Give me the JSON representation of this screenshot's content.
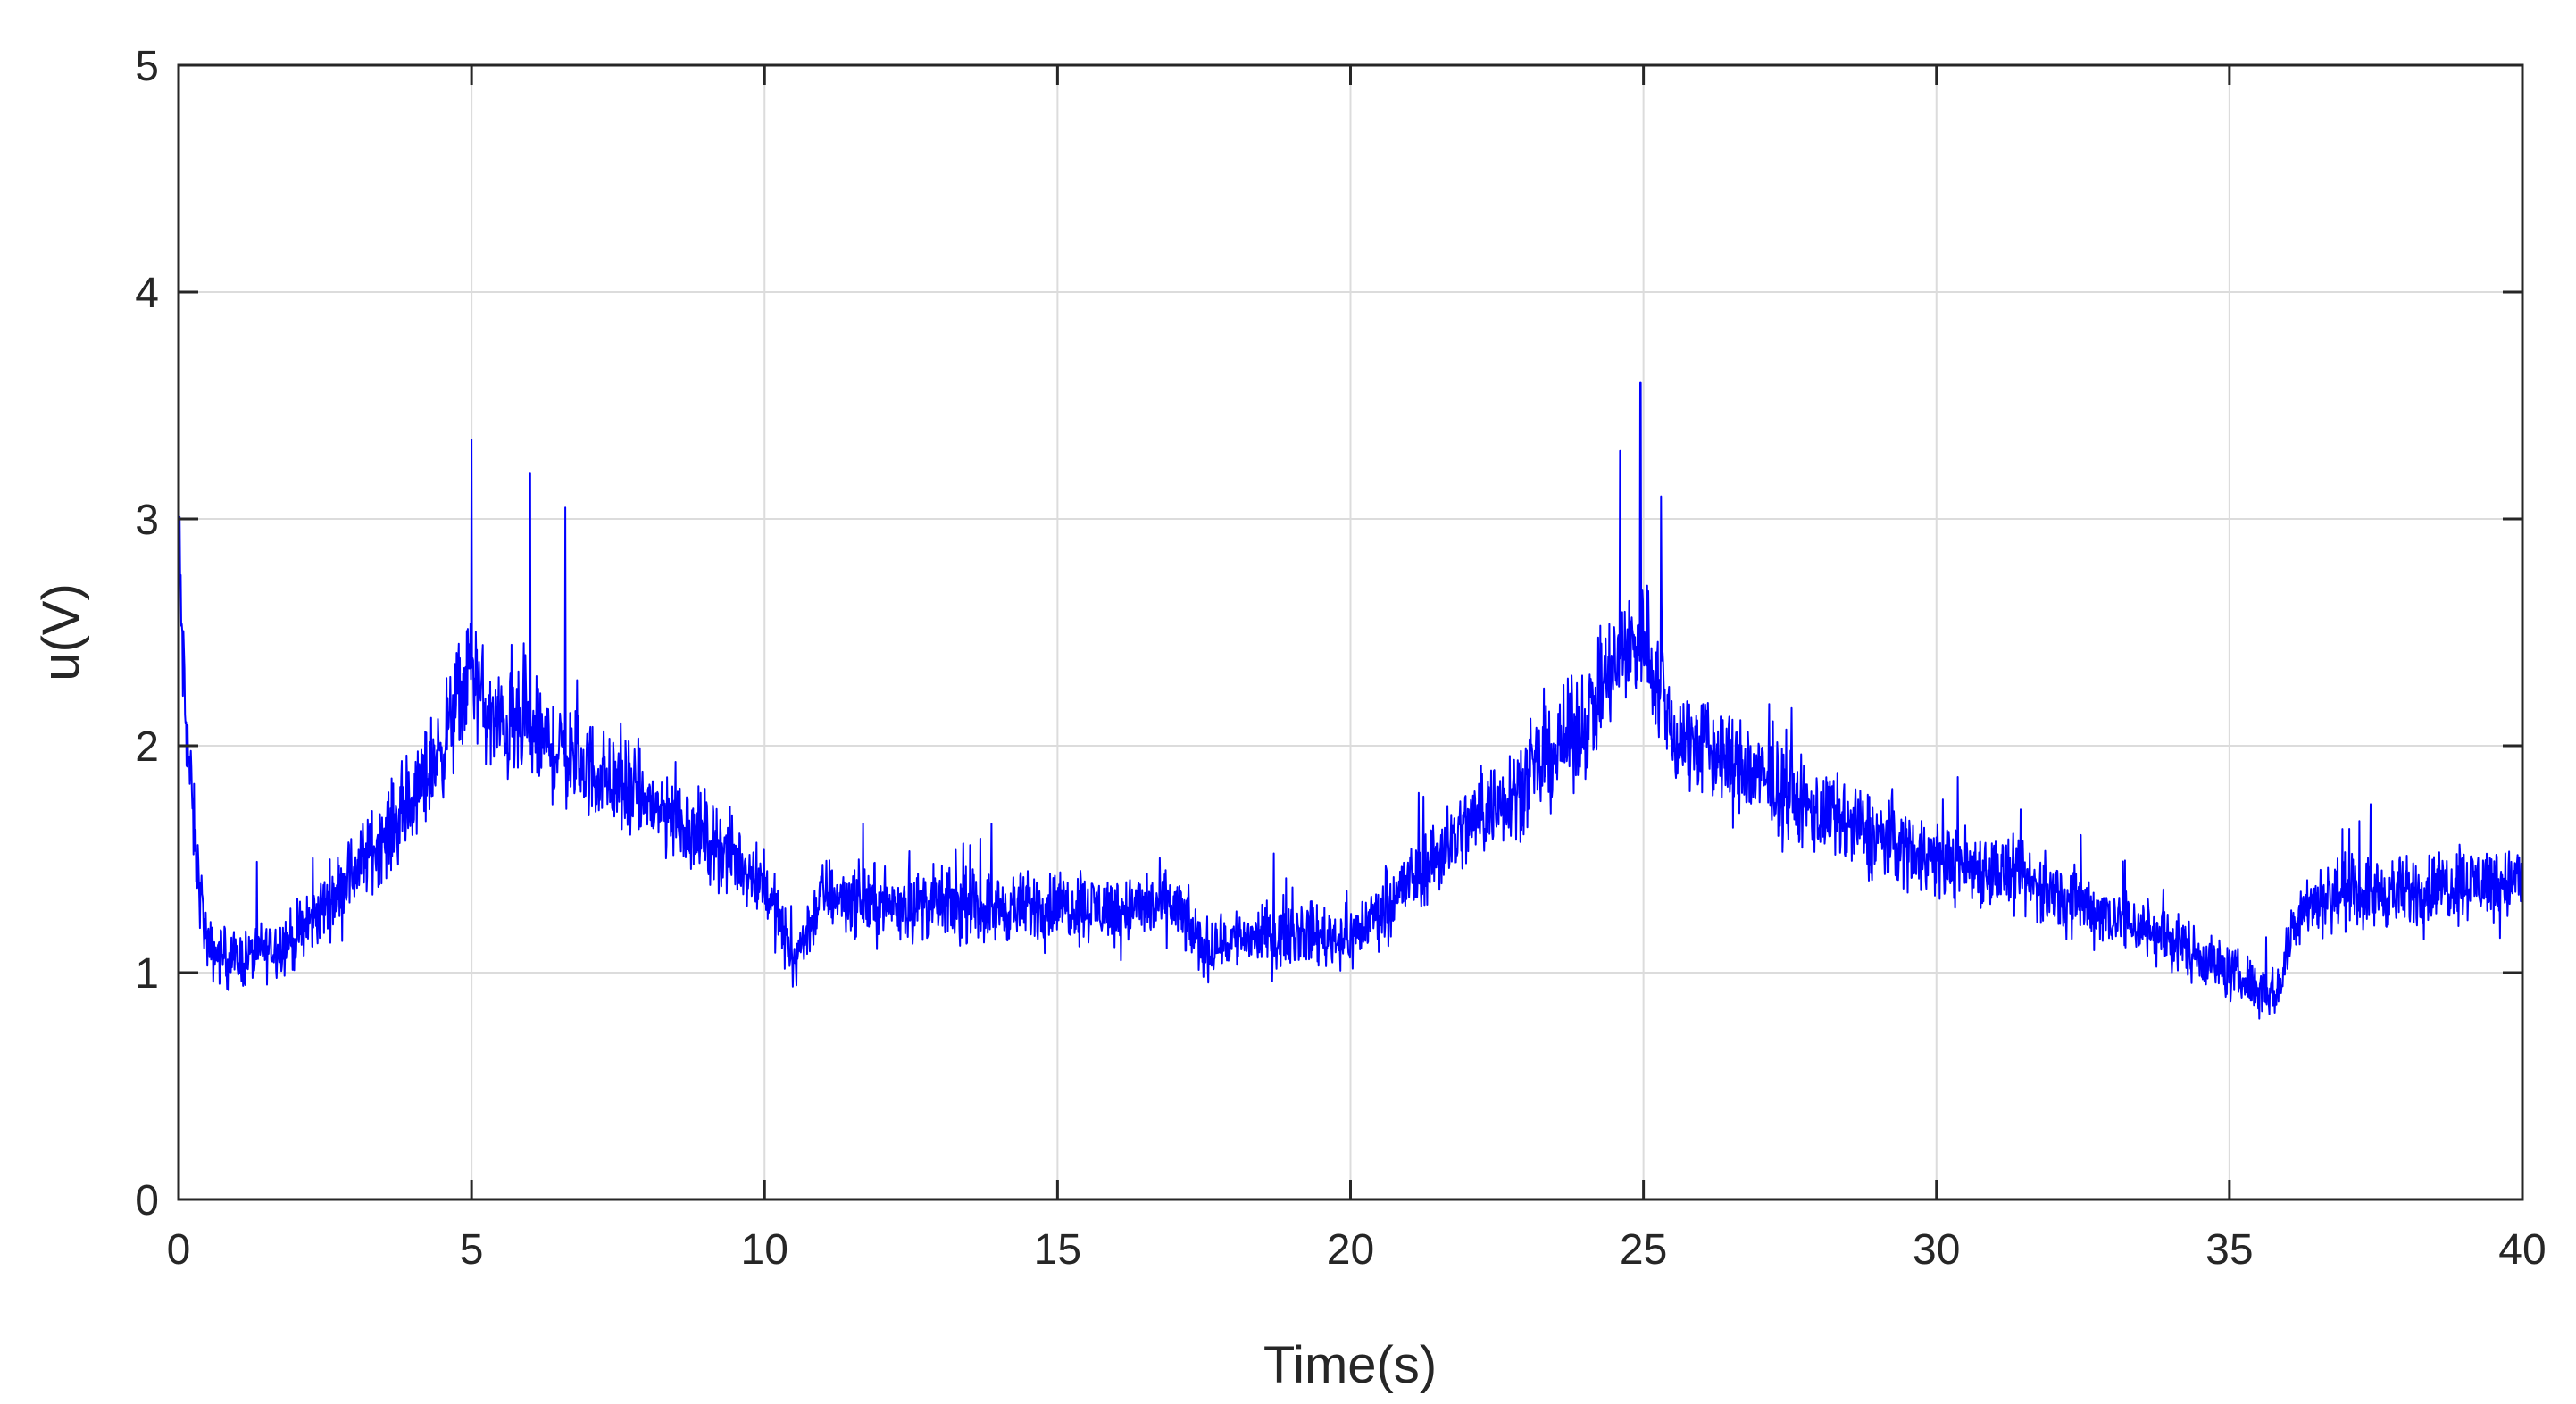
{
  "chart_data": {
    "type": "line",
    "title": "",
    "xlabel": "Time(s)",
    "ylabel": "u(V)",
    "xlim": [
      0,
      40
    ],
    "ylim": [
      0,
      5
    ],
    "xticks": [
      0,
      5,
      10,
      15,
      20,
      25,
      30,
      35,
      40
    ],
    "yticks": [
      0,
      1,
      2,
      3,
      4,
      5
    ],
    "grid": true,
    "series": [
      {
        "color": "#0000ff",
        "x": [
          0,
          0.1,
          0.3,
          0.5,
          1,
          1.5,
          2,
          3,
          4,
          4.5,
          5,
          5.3,
          6,
          7,
          8,
          9,
          10,
          10.5,
          11,
          12,
          13,
          14,
          15,
          16,
          17,
          17.5,
          18,
          19,
          20,
          21,
          22,
          23,
          24,
          24.5,
          25,
          25.5,
          26,
          27,
          28,
          29,
          30,
          31,
          32,
          33,
          34,
          35,
          35.8,
          36.2,
          37,
          38,
          39,
          40
        ],
        "y": [
          2.9,
          2.2,
          1.5,
          1.1,
          1.05,
          1.1,
          1.15,
          1.45,
          1.75,
          2.0,
          2.35,
          2.1,
          2.05,
          1.9,
          1.75,
          1.6,
          1.4,
          1.05,
          1.35,
          1.3,
          1.3,
          1.28,
          1.3,
          1.28,
          1.3,
          1.1,
          1.15,
          1.18,
          1.15,
          1.4,
          1.65,
          1.85,
          2.1,
          2.35,
          2.5,
          2.05,
          2.0,
          1.85,
          1.7,
          1.6,
          1.5,
          1.45,
          1.35,
          1.25,
          1.15,
          1.0,
          0.9,
          1.3,
          1.35,
          1.35,
          1.4,
          1.4
        ],
        "noise_band": 0.22,
        "spikes": [
          {
            "x": 5.0,
            "y": 3.35
          },
          {
            "x": 6.0,
            "y": 3.2
          },
          {
            "x": 6.6,
            "y": 3.05
          },
          {
            "x": 24.6,
            "y": 3.3
          },
          {
            "x": 24.95,
            "y": 3.6
          },
          {
            "x": 25.3,
            "y": 3.1
          }
        ]
      }
    ]
  }
}
